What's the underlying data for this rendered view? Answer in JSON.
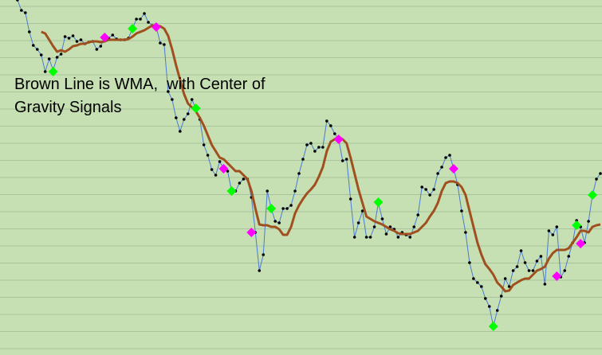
{
  "chart_data": {
    "type": "line",
    "annotation": "Brown Line is WMA,  with Center of Gravity Signals",
    "xlim": [
      -4.4,
      147.4
    ],
    "ylim": [
      0,
      446
    ],
    "yticks": [
      8,
      29.5,
      51,
      72.5,
      94,
      115.5,
      137,
      158.5,
      180,
      201.5,
      223,
      244.5,
      266,
      287.5,
      309,
      330.5,
      352,
      373.5,
      395,
      416.5,
      438
    ],
    "grid": true,
    "series": [
      {
        "color": "#4a7bd0",
        "marker_color": "#000000",
        "values": [
          446,
          433,
          430,
          406,
          389,
          384,
          377,
          356,
          372,
          358,
          374,
          378,
          400,
          398,
          401,
          394,
          396,
          391,
          393,
          394,
          384,
          388,
          399,
          398,
          402,
          397,
          396,
          396,
          398,
          410,
          422,
          422,
          429,
          418,
          414,
          412,
          392,
          390,
          331,
          321,
          298,
          281,
          296,
          303,
          321,
          309,
          296,
          264,
          251,
          233,
          226,
          243,
          234,
          231,
          206,
          206,
          216,
          221,
          221,
          198,
          154,
          106,
          126,
          206,
          184,
          168,
          166,
          184,
          184,
          188,
          206,
          228,
          246,
          264,
          266,
          256,
          261,
          261,
          294,
          288,
          278,
          271,
          244,
          246,
          196,
          148,
          166,
          181,
          148,
          148,
          161,
          191,
          171,
          152,
          161,
          158,
          148,
          154,
          151,
          148,
          161,
          176,
          211,
          208,
          201,
          208,
          228,
          236,
          248,
          251,
          234,
          214,
          181,
          154,
          116,
          96,
          91,
          86,
          71,
          61,
          36,
          56,
          74,
          96,
          86,
          106,
          111,
          131,
          116,
          106,
          106,
          118,
          124,
          89,
          156,
          151,
          161,
          98,
          106,
          124,
          141,
          169,
          161,
          141,
          168,
          201,
          221,
          228
        ]
      },
      {
        "color": "#a0501e",
        "values": [
          null,
          null,
          null,
          null,
          null,
          null,
          406,
          404,
          396,
          388,
          381,
          383,
          381,
          384,
          388,
          389,
          391,
          391,
          393,
          394,
          394,
          393,
          394,
          396,
          396,
          396,
          396,
          396,
          397,
          400,
          404,
          406,
          408,
          411,
          414,
          414,
          413,
          410,
          401,
          384,
          364,
          346,
          328,
          316,
          311,
          306,
          298,
          288,
          276,
          264,
          256,
          248,
          246,
          241,
          236,
          231,
          231,
          226,
          221,
          206,
          184,
          164,
          163,
          163,
          161,
          161,
          158,
          151,
          151,
          161,
          178,
          188,
          196,
          203,
          208,
          214,
          224,
          236,
          256,
          268,
          271,
          274,
          271,
          266,
          248,
          228,
          208,
          191,
          174,
          171,
          168,
          166,
          164,
          161,
          158,
          156,
          153,
          152,
          152,
          152,
          154,
          156,
          161,
          166,
          174,
          181,
          191,
          206,
          216,
          218,
          218,
          216,
          211,
          201,
          181,
          161,
          141,
          126,
          114,
          108,
          101,
          91,
          86,
          80,
          81,
          88,
          91,
          94,
          96,
          96,
          101,
          106,
          108,
          111,
          121,
          128,
          132,
          132,
          132,
          134,
          141,
          148,
          156,
          156,
          154,
          161,
          163,
          164
        ]
      },
      {
        "color": "#00ff00",
        "marker": "diamond",
        "x": [
          9,
          29,
          45,
          54,
          64,
          91,
          120,
          141,
          145
        ],
        "values": [
          356,
          410,
          310,
          206,
          184,
          192,
          36,
          163,
          201
        ]
      },
      {
        "color": "#ff00ff",
        "marker": "diamond",
        "x": [
          22,
          35,
          52,
          59,
          81,
          110,
          136,
          142
        ],
        "values": [
          399,
          412,
          234,
          154,
          271,
          234,
          99,
          140
        ]
      }
    ]
  }
}
